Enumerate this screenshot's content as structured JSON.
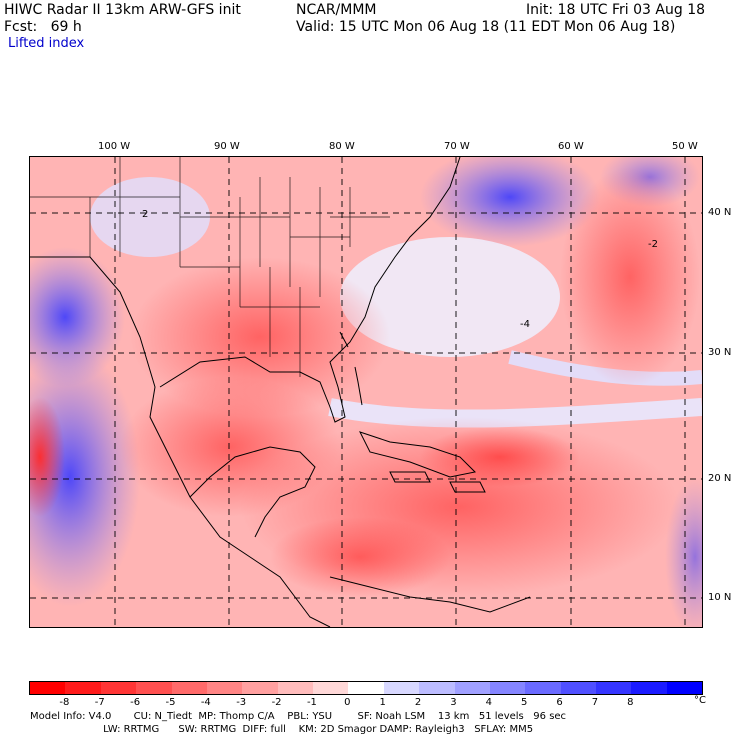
{
  "header": {
    "title": "HIWC Radar II 13km ARW-GFS init",
    "org": "NCAR/MMM",
    "init": "Init: 18 UTC Fri 03 Aug 18",
    "fcst": "Fcst:   69 h",
    "valid": "Valid: 15 UTC Mon 06 Aug 18 (11 EDT Mon 06 Aug 18)",
    "field": "Lifted index"
  },
  "map": {
    "lon_labels": [
      "100 W",
      "90 W",
      "80 W",
      "70 W",
      "60 W",
      "50 W"
    ],
    "lat_labels": [
      "40 N",
      "30 N",
      "20 N",
      "10 N"
    ],
    "contour_labels": [
      "2",
      "-2",
      "-4"
    ]
  },
  "legend": {
    "ticks": [
      "-8",
      "-7",
      "-6",
      "-5",
      "-4",
      "-3",
      "-2",
      "-1",
      "0",
      "1",
      "2",
      "3",
      "4",
      "5",
      "6",
      "7",
      "8"
    ],
    "unit": "°C",
    "colors": [
      "#ff0000",
      "#ff1b1b",
      "#ff3535",
      "#ff5050",
      "#ff6a6a",
      "#ff8585",
      "#ffa0a0",
      "#ffbcbc",
      "#ffd8d8",
      "#ffffff",
      "#d8d8ff",
      "#bcbcff",
      "#a0a0ff",
      "#8585ff",
      "#6a6aff",
      "#5050ff",
      "#3535ff",
      "#1b1bff",
      "#0000ff"
    ]
  },
  "footer": {
    "line1": "Model Info: V4.0       CU: N_Tiedt  MP: Thomp C/A    PBL: YSU        SF: Noah LSM    13 km   51 levels   96 sec",
    "line2": "                       LW: RRTMG      SW: RRTMG  DIFF: full    KM: 2D Smagor DAMP: Rayleigh3   SFLAY: MM5"
  }
}
